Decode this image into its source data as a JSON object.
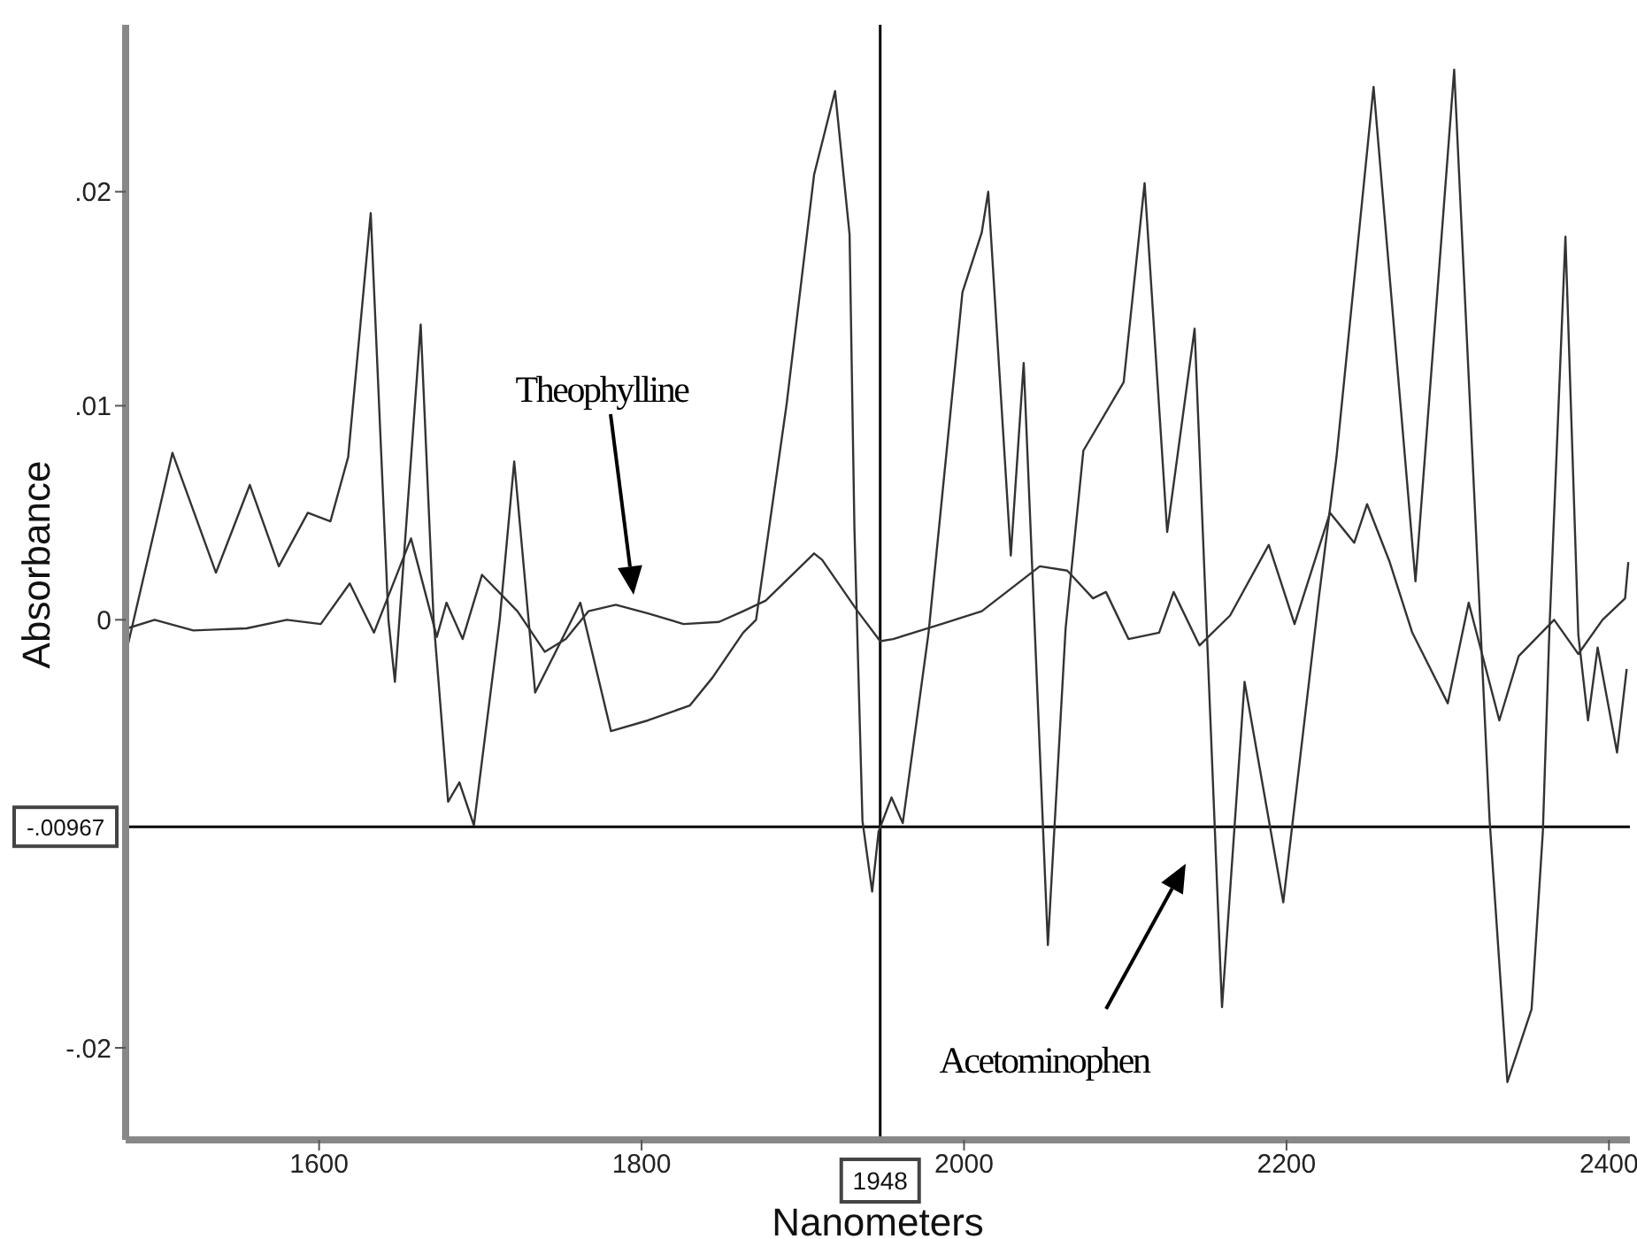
{
  "chart_data": {
    "type": "line",
    "xlabel": "Nanometers",
    "ylabel": "Absorbance",
    "xlim": [
      1480,
      2413
    ],
    "ylim": [
      -0.0243,
      0.0278
    ],
    "xticks": [
      1600,
      1800,
      2000,
      2200,
      2400
    ],
    "yticks": [
      {
        "value": 0.02,
        "label": ".02"
      },
      {
        "value": 0.01,
        "label": ".01"
      },
      {
        "value": 0,
        "label": "0"
      },
      {
        "value": -0.02,
        "label": "-.02"
      }
    ],
    "marker": "none",
    "line_style": "solid",
    "series": [
      {
        "color": "#333333",
        "x": [
          1481,
          1509,
          1536,
          1557,
          1575,
          1593,
          1607,
          1618,
          1632,
          1643,
          1647,
          1663,
          1671,
          1680,
          1687,
          1696,
          1712,
          1721,
          1734,
          1762,
          1781,
          1804,
          1830,
          1844,
          1863,
          1871,
          1890,
          1907,
          1920,
          1929,
          1932,
          1937,
          1943,
          1947,
          1955,
          1962,
          1978,
          1999,
          2011,
          2015,
          2029,
          2037,
          2052,
          2063,
          2074,
          2099,
          2112,
          2126,
          2143,
          2160,
          2174,
          2198,
          2220,
          2231,
          2254,
          2280,
          2304,
          2326,
          2337,
          2352,
          2359,
          2363,
          2373,
          2381,
          2387,
          2393,
          2405,
          2411
        ],
        "values": [
          -0.0013,
          0.0078,
          0.0022,
          0.0063,
          0.0025,
          0.005,
          0.0046,
          0.0076,
          0.019,
          0,
          -0.0029,
          0.0138,
          0,
          -0.0085,
          -0.0076,
          -0.0096,
          0,
          0.0074,
          -0.0034,
          0.0008,
          -0.0052,
          -0.0047,
          -0.004,
          -0.0027,
          -0.0006,
          0,
          0.0101,
          0.0208,
          0.0247,
          0.018,
          0.0043,
          -0.0094,
          -0.0127,
          -0.0099,
          -0.0083,
          -0.0095,
          -0.0006,
          0.0153,
          0.0181,
          0.02,
          0.003,
          0.012,
          -0.0152,
          -0.0004,
          0.0079,
          0.0111,
          0.0204,
          0.0041,
          0.0136,
          -0.0181,
          -0.0029,
          -0.0132,
          0.001,
          0.0076,
          0.0249,
          0.0018,
          0.0257,
          -0.0094,
          -0.0216,
          -0.0182,
          -0.0099,
          -0.0006,
          0.0179,
          -0.0007,
          -0.0047,
          -0.0013,
          -0.0062,
          -0.0023
        ]
      },
      {
        "color": "#333333",
        "x": [
          1481,
          1498,
          1522,
          1555,
          1580,
          1601,
          1619,
          1634,
          1657,
          1673,
          1679,
          1689,
          1701,
          1723,
          1740,
          1753,
          1767,
          1784,
          1804,
          1826,
          1848,
          1863,
          1877,
          1907,
          1912,
          1934,
          1948,
          1956,
          1986,
          2011,
          2047,
          2064,
          2080,
          2088,
          2102,
          2121,
          2130,
          2146,
          2165,
          2189,
          2205,
          2227,
          2242,
          2250,
          2264,
          2278,
          2300,
          2313,
          2332,
          2344,
          2366,
          2381,
          2396,
          2410,
          2412
        ],
        "values": [
          -0.0004,
          0,
          -0.0005,
          -0.0004,
          0,
          -0.0002,
          0.0017,
          -0.0006,
          0.0038,
          -0.0008,
          0.0008,
          -0.0009,
          0.0021,
          0.0004,
          -0.0015,
          -0.0009,
          0.0004,
          0.0007,
          0.0003,
          -0.0002,
          -0.0001,
          0.0004,
          0.0009,
          0.0031,
          0.0028,
          0.0004,
          -0.001,
          -0.0009,
          -0.0002,
          0.0004,
          0.0025,
          0.0023,
          0.001,
          0.0013,
          -0.0009,
          -0.0006,
          0.0013,
          -0.0012,
          0.0002,
          0.0035,
          -0.0002,
          0.005,
          0.0036,
          0.0054,
          0.0027,
          -0.0006,
          -0.0039,
          0.0008,
          -0.0047,
          -0.0017,
          0,
          -0.0016,
          0,
          0.001,
          0.0027
        ]
      }
    ],
    "ref_lines": [
      {
        "axis": "y",
        "value": -0.00967,
        "label": "-.00967",
        "color": "#000000"
      },
      {
        "axis": "x",
        "value": 1948,
        "label": "1948",
        "color": "#000000"
      }
    ],
    "annotations": [
      "Theophylline",
      "Acetominophen"
    ]
  }
}
